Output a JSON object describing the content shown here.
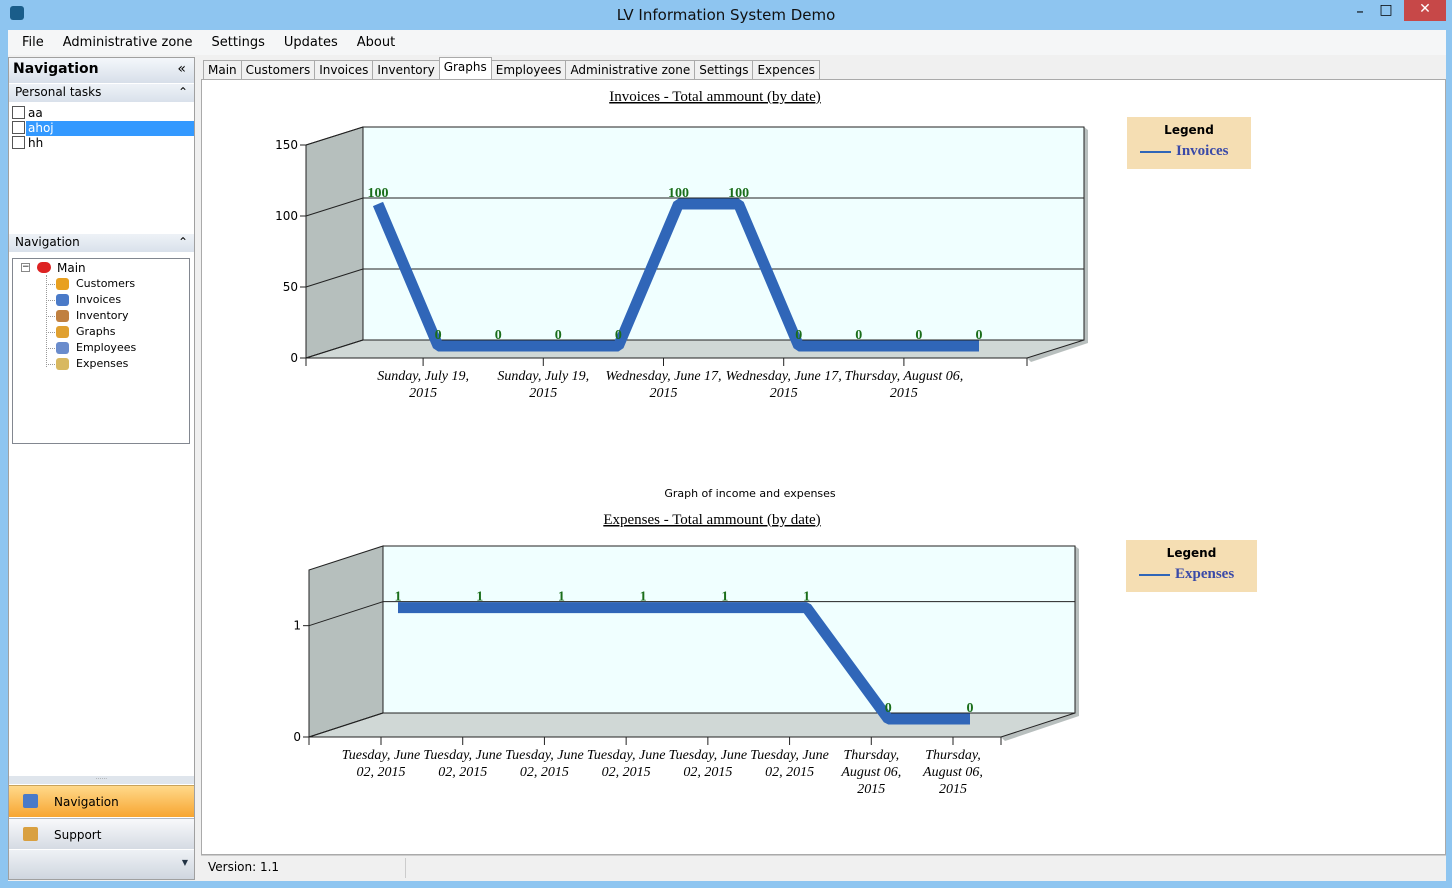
{
  "window": {
    "title": "LV Information System Demo"
  },
  "menu": [
    "File",
    "Administrative zone",
    "Settings",
    "Updates",
    "About"
  ],
  "sidebar": {
    "header": "Navigation",
    "personal_tasks": {
      "title": "Personal tasks",
      "items": [
        "aa",
        "ahoj",
        "hh"
      ]
    },
    "navigation": {
      "title": "Navigation",
      "root": "Main",
      "items": [
        "Customers",
        "Invoices",
        "Inventory",
        "Graphs",
        "Employees",
        "Expenses"
      ]
    },
    "buttons": [
      "Navigation",
      "Support"
    ]
  },
  "tabs": [
    "Main",
    "Customers",
    "Invoices",
    "Inventory",
    "Graphs",
    "Employees",
    "Administrative zone",
    "Settings",
    "Expences"
  ],
  "graphs_caption": "Graph of income and expenses",
  "charts": [
    {
      "type": "line",
      "title": "Invoices - Total ammount (by date)",
      "legend_title": "Legend",
      "categories": [
        null,
        "Sunday, July 19, 2015",
        null,
        "Sunday, July 19, 2015",
        null,
        "Wednesday, June 17, 2015",
        null,
        "Wednesday, June 17, 2015",
        null,
        "Thursday, August 06, 2015",
        null
      ],
      "series": [
        {
          "name": "Invoices",
          "color": "#3066b8",
          "values": [
            100,
            0,
            0,
            0,
            0,
            100,
            100,
            0,
            0,
            0,
            0
          ]
        }
      ],
      "ylim": [
        0,
        150
      ],
      "yticks": [
        0,
        50,
        100,
        150
      ],
      "grid": true
    },
    {
      "type": "line",
      "title": "Expenses - Total ammount (by date)",
      "legend_title": "Legend",
      "categories": [
        "Tuesday, June 02, 2015",
        "Tuesday, June 02, 2015",
        "Tuesday, June 02, 2015",
        "Tuesday, June 02, 2015",
        "Tuesday, June 02, 2015",
        "Tuesday, June 02, 2015",
        "Thursday, August 06, 2015",
        "Thursday, August 06, 2015"
      ],
      "series": [
        {
          "name": "Expenses",
          "color": "#3066b8",
          "values": [
            1,
            1,
            1,
            1,
            1,
            1,
            0,
            0
          ]
        }
      ],
      "ylim": [
        0,
        1.5
      ],
      "yticks": [
        0,
        1
      ],
      "grid": true
    }
  ],
  "status": {
    "version": "Version: 1.1"
  }
}
